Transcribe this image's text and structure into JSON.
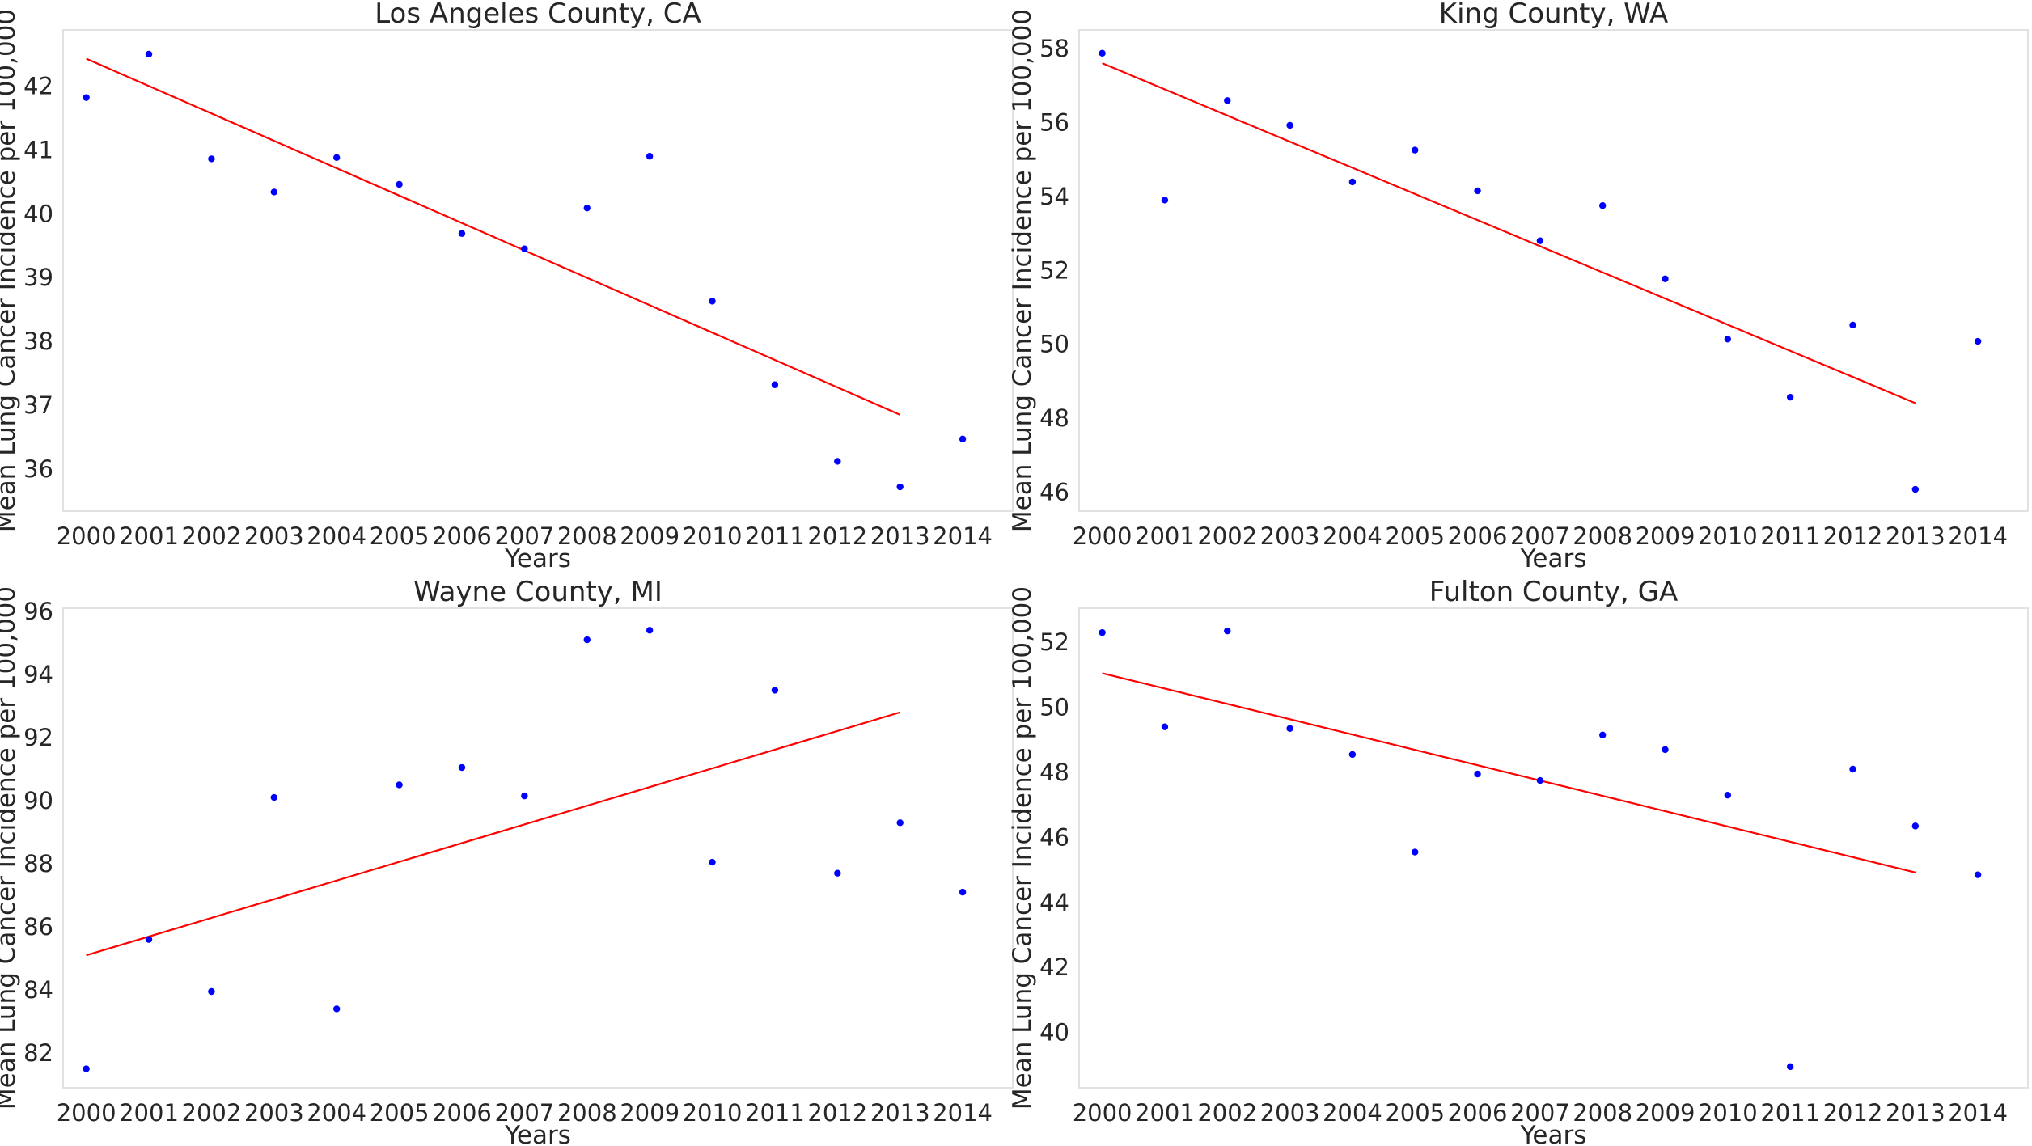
{
  "chart_data": [
    {
      "type": "scatter",
      "title": "Los Angeles County, CA",
      "xlabel": "Years",
      "ylabel": "Mean Lung Cancer Incidence per 100,000",
      "x": [
        2000,
        2001,
        2002,
        2003,
        2004,
        2005,
        2006,
        2007,
        2008,
        2009,
        2010,
        2011,
        2012,
        2013,
        2014
      ],
      "y": [
        41.82,
        42.5,
        40.86,
        40.34,
        40.88,
        40.46,
        39.69,
        39.45,
        40.09,
        40.9,
        38.63,
        37.32,
        36.12,
        35.72,
        36.47
      ],
      "trend": {
        "x": [
          2000,
          2013
        ],
        "y": [
          42.43,
          36.85
        ]
      },
      "xlim": [
        1999.63,
        2014.8
      ],
      "ylim": [
        35.34,
        42.88
      ],
      "yticks": [
        36,
        37,
        38,
        39,
        40,
        41,
        42
      ],
      "grid": false,
      "point_color": "#0000ff",
      "line_color": "#ff0000"
    },
    {
      "type": "scatter",
      "title": "King County, WA",
      "xlabel": "Years",
      "ylabel": "Mean Lung Cancer Incidence per 100,000",
      "x": [
        2000,
        2001,
        2002,
        2003,
        2004,
        2005,
        2006,
        2007,
        2008,
        2009,
        2010,
        2011,
        2012,
        2013,
        2014
      ],
      "y": [
        57.87,
        53.9,
        56.59,
        55.92,
        54.39,
        55.25,
        54.15,
        52.8,
        53.75,
        51.77,
        50.14,
        48.57,
        50.52,
        46.08,
        50.08
      ],
      "trend": {
        "x": [
          2000,
          2013
        ],
        "y": [
          57.6,
          48.41
        ]
      },
      "xlim": [
        1999.63,
        2014.8
      ],
      "ylim": [
        45.49,
        58.5
      ],
      "yticks": [
        46,
        48,
        50,
        52,
        54,
        56,
        58
      ],
      "grid": false,
      "point_color": "#0000ff",
      "line_color": "#ff0000"
    },
    {
      "type": "scatter",
      "title": "Wayne County, MI",
      "xlabel": "Years",
      "ylabel": "Mean Lung Cancer Incidence per 100,000",
      "x": [
        2000,
        2001,
        2002,
        2003,
        2004,
        2005,
        2006,
        2007,
        2008,
        2009,
        2010,
        2011,
        2012,
        2013,
        2014
      ],
      "y": [
        81.5,
        85.6,
        83.95,
        90.1,
        83.4,
        90.5,
        91.05,
        90.15,
        95.1,
        95.4,
        88.05,
        93.5,
        87.7,
        89.3,
        87.1
      ],
      "trend": {
        "x": [
          2000,
          2013
        ],
        "y": [
          85.1,
          92.8
        ]
      },
      "xlim": [
        1999.63,
        2014.8
      ],
      "ylim": [
        80.9,
        96.1
      ],
      "yticks": [
        82,
        84,
        86,
        88,
        90,
        92,
        94,
        96
      ],
      "grid": false,
      "point_color": "#0000ff",
      "line_color": "#ff0000"
    },
    {
      "type": "scatter",
      "title": "Fulton County, GA",
      "xlabel": "Years",
      "ylabel": "Mean Lung Cancer Incidence per 100,000",
      "x": [
        2000,
        2001,
        2002,
        2003,
        2004,
        2005,
        2006,
        2007,
        2008,
        2009,
        2010,
        2011,
        2012,
        2013,
        2014
      ],
      "y": [
        52.3,
        49.4,
        52.35,
        49.35,
        48.55,
        45.55,
        47.95,
        47.75,
        49.15,
        48.7,
        47.3,
        38.95,
        48.1,
        46.35,
        44.85
      ],
      "trend": {
        "x": [
          2000,
          2013
        ],
        "y": [
          51.05,
          44.92
        ]
      },
      "xlim": [
        1999.63,
        2014.8
      ],
      "ylim": [
        38.3,
        53.05
      ],
      "yticks": [
        40,
        42,
        44,
        46,
        48,
        50,
        52
      ],
      "grid": false,
      "point_color": "#0000ff",
      "line_color": "#ff0000"
    }
  ]
}
